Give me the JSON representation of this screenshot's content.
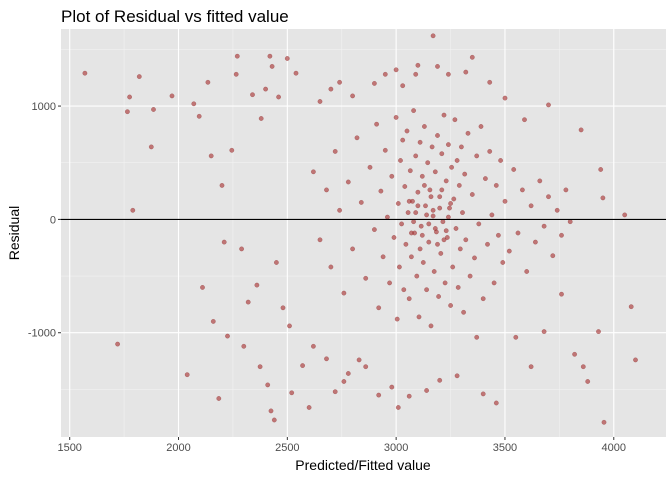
{
  "chart_data": {
    "type": "scatter",
    "title": "Plot of Residual vs fitted value",
    "xlabel": "Predicted/Fitted value",
    "ylabel": "Residual",
    "xlim": [
      1460,
      4240
    ],
    "ylim": [
      -1920,
      1680
    ],
    "x_ticks": [
      1500,
      2000,
      2500,
      3000,
      3500,
      4000
    ],
    "x_tick_labels": [
      "1500",
      "2000",
      "2500",
      "3000",
      "3500",
      "4000"
    ],
    "y_ticks": [
      -1000,
      0,
      1000
    ],
    "y_tick_labels": [
      "-1000",
      "0",
      "1000"
    ],
    "reference_line": {
      "y": 0,
      "color": "#000000"
    },
    "point_color": "#a52a2a",
    "point_alpha": 0.6,
    "panel_background": "#e5e5e5",
    "grid": true,
    "legend": "none",
    "points": [
      [
        1570,
        1290
      ],
      [
        1720,
        -1100
      ],
      [
        1765,
        950
      ],
      [
        1775,
        1080
      ],
      [
        1790,
        80
      ],
      [
        1820,
        1260
      ],
      [
        1875,
        640
      ],
      [
        1885,
        970
      ],
      [
        1970,
        1090
      ],
      [
        2040,
        -1370
      ],
      [
        2070,
        1020
      ],
      [
        2095,
        910
      ],
      [
        2110,
        -600
      ],
      [
        2135,
        1210
      ],
      [
        2150,
        560
      ],
      [
        2160,
        -900
      ],
      [
        2185,
        -1580
      ],
      [
        2200,
        300
      ],
      [
        2210,
        -200
      ],
      [
        2225,
        -1030
      ],
      [
        2245,
        610
      ],
      [
        2265,
        1280
      ],
      [
        2270,
        1440
      ],
      [
        2290,
        -260
      ],
      [
        2300,
        -1120
      ],
      [
        2320,
        -730
      ],
      [
        2340,
        1100
      ],
      [
        2360,
        -580
      ],
      [
        2375,
        -1300
      ],
      [
        2380,
        890
      ],
      [
        2400,
        1150
      ],
      [
        2410,
        -1460
      ],
      [
        2420,
        1440
      ],
      [
        2425,
        -1690
      ],
      [
        2430,
        1350
      ],
      [
        2440,
        -1770
      ],
      [
        2450,
        -380
      ],
      [
        2460,
        1080
      ],
      [
        2480,
        -780
      ],
      [
        2500,
        1420
      ],
      [
        2510,
        -940
      ],
      [
        2520,
        -1530
      ],
      [
        2540,
        1290
      ],
      [
        2570,
        -1290
      ],
      [
        2600,
        -1660
      ],
      [
        2620,
        -1120
      ],
      [
        2650,
        1040
      ],
      [
        2680,
        -1230
      ],
      [
        2700,
        1150
      ],
      [
        2720,
        -1520
      ],
      [
        2740,
        1210
      ],
      [
        2760,
        -1430
      ],
      [
        2780,
        -1360
      ],
      [
        2800,
        1090
      ],
      [
        2830,
        -1240
      ],
      [
        2860,
        -1300
      ],
      [
        2900,
        1200
      ],
      [
        2920,
        -1550
      ],
      [
        2950,
        1280
      ],
      [
        2980,
        -1480
      ],
      [
        3000,
        1320
      ],
      [
        3010,
        -1660
      ],
      [
        3030,
        1180
      ],
      [
        3060,
        -1560
      ],
      [
        3090,
        1280
      ],
      [
        3100,
        1360
      ],
      [
        3140,
        -1510
      ],
      [
        3170,
        1620
      ],
      [
        3190,
        1350
      ],
      [
        3200,
        -1420
      ],
      [
        3240,
        1280
      ],
      [
        3280,
        -1380
      ],
      [
        3320,
        1300
      ],
      [
        3350,
        1430
      ],
      [
        3370,
        -1040
      ],
      [
        3400,
        -1540
      ],
      [
        3430,
        1210
      ],
      [
        3460,
        -1620
      ],
      [
        3500,
        1070
      ],
      [
        3550,
        -1040
      ],
      [
        3590,
        880
      ],
      [
        3620,
        -1300
      ],
      [
        3680,
        -990
      ],
      [
        3700,
        1010
      ],
      [
        3760,
        -660
      ],
      [
        3820,
        -1190
      ],
      [
        3850,
        790
      ],
      [
        3860,
        -1300
      ],
      [
        3880,
        -1430
      ],
      [
        3930,
        -990
      ],
      [
        3940,
        440
      ],
      [
        3950,
        190
      ],
      [
        3955,
        -1790
      ],
      [
        4050,
        40
      ],
      [
        4080,
        -770
      ],
      [
        4100,
        -1240
      ],
      [
        2620,
        420
      ],
      [
        2650,
        -180
      ],
      [
        2680,
        260
      ],
      [
        2700,
        -420
      ],
      [
        2720,
        600
      ],
      [
        2740,
        80
      ],
      [
        2760,
        -650
      ],
      [
        2780,
        330
      ],
      [
        2800,
        -260
      ],
      [
        2820,
        720
      ],
      [
        2840,
        150
      ],
      [
        2860,
        -520
      ],
      [
        2880,
        460
      ],
      [
        2900,
        -90
      ],
      [
        2910,
        840
      ],
      [
        2920,
        -780
      ],
      [
        2930,
        250
      ],
      [
        2940,
        -330
      ],
      [
        2950,
        610
      ],
      [
        2960,
        20
      ],
      [
        2970,
        -560
      ],
      [
        2980,
        380
      ],
      [
        2990,
        -160
      ],
      [
        3000,
        900
      ],
      [
        3005,
        -880
      ],
      [
        3010,
        140
      ],
      [
        3015,
        -420
      ],
      [
        3020,
        520
      ],
      [
        3025,
        -40
      ],
      [
        3030,
        700
      ],
      [
        3035,
        -620
      ],
      [
        3040,
        290
      ],
      [
        3045,
        -220
      ],
      [
        3050,
        780
      ],
      [
        3055,
        60
      ],
      [
        3060,
        -700
      ],
      [
        3065,
        430
      ],
      [
        3070,
        -330
      ],
      [
        3075,
        160
      ],
      [
        3080,
        960
      ],
      [
        3085,
        -120
      ],
      [
        3090,
        560
      ],
      [
        3095,
        -500
      ],
      [
        3100,
        240
      ],
      [
        3105,
        -860
      ],
      [
        3110,
        680
      ],
      [
        3115,
        -60
      ],
      [
        3120,
        380
      ],
      [
        3125,
        -380
      ],
      [
        3130,
        820
      ],
      [
        3135,
        120
      ],
      [
        3140,
        -620
      ],
      [
        3145,
        500
      ],
      [
        3150,
        -200
      ],
      [
        3155,
        260
      ],
      [
        3160,
        -940
      ],
      [
        3165,
        640
      ],
      [
        3170,
        30
      ],
      [
        3175,
        -460
      ],
      [
        3180,
        420
      ],
      [
        3185,
        -110
      ],
      [
        3190,
        740
      ],
      [
        3195,
        -680
      ],
      [
        3200,
        200
      ],
      [
        3205,
        -300
      ],
      [
        3210,
        580
      ],
      [
        3215,
        -20
      ],
      [
        3220,
        920
      ],
      [
        3225,
        -560
      ],
      [
        3230,
        340
      ],
      [
        3235,
        -160
      ],
      [
        3240,
        660
      ],
      [
        3245,
        100
      ],
      [
        3250,
        -760
      ],
      [
        3255,
        460
      ],
      [
        3260,
        -420
      ],
      [
        3265,
        180
      ],
      [
        3270,
        880
      ],
      [
        3275,
        -80
      ],
      [
        3280,
        520
      ],
      [
        3285,
        -600
      ],
      [
        3290,
        300
      ],
      [
        3295,
        -260
      ],
      [
        3300,
        640
      ],
      [
        3305,
        60
      ],
      [
        3310,
        -820
      ],
      [
        3315,
        400
      ],
      [
        3320,
        -180
      ],
      [
        3330,
        760
      ],
      [
        3340,
        -500
      ],
      [
        3350,
        220
      ],
      [
        3360,
        -340
      ],
      [
        3370,
        560
      ],
      [
        3380,
        -40
      ],
      [
        3390,
        820
      ],
      [
        3400,
        -700
      ],
      [
        3410,
        360
      ],
      [
        3420,
        -220
      ],
      [
        3430,
        600
      ],
      [
        3440,
        40
      ],
      [
        3450,
        -560
      ],
      [
        3460,
        300
      ],
      [
        3470,
        -140
      ],
      [
        3480,
        520
      ],
      [
        3490,
        -380
      ],
      [
        3500,
        160
      ],
      [
        3520,
        -280
      ],
      [
        3540,
        440
      ],
      [
        3560,
        -120
      ],
      [
        3580,
        260
      ],
      [
        3600,
        -460
      ],
      [
        3620,
        120
      ],
      [
        3640,
        -200
      ],
      [
        3660,
        340
      ],
      [
        3680,
        -60
      ],
      [
        3700,
        200
      ],
      [
        3720,
        -320
      ],
      [
        3740,
        80
      ],
      [
        3760,
        -140
      ],
      [
        3780,
        260
      ],
      [
        3800,
        -20
      ],
      [
        3060,
        160
      ],
      [
        3080,
        -20
      ],
      [
        3100,
        120
      ],
      [
        3120,
        -140
      ],
      [
        3140,
        40
      ],
      [
        3160,
        200
      ],
      [
        3180,
        -80
      ],
      [
        3200,
        100
      ],
      [
        3220,
        -180
      ],
      [
        3240,
        20
      ],
      [
        3110,
        -260
      ],
      [
        3130,
        300
      ],
      [
        3150,
        -40
      ],
      [
        3170,
        80
      ],
      [
        3190,
        -220
      ],
      [
        3210,
        260
      ],
      [
        3230,
        -100
      ],
      [
        3090,
        60
      ],
      [
        3070,
        -120
      ],
      [
        3250,
        140
      ]
    ]
  }
}
